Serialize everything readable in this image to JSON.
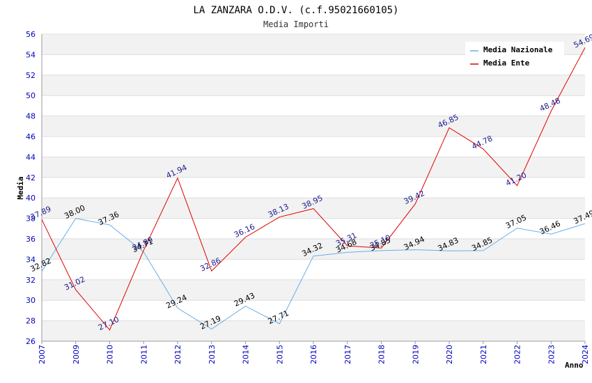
{
  "chart_data": {
    "type": "line",
    "title": "LA ZANZARA O.D.V. (c.f.95021660105)",
    "subtitle": "Media Importi",
    "xlabel": "Anno",
    "ylabel": "Media",
    "ylim": [
      26,
      56
    ],
    "yticks": [
      26,
      28,
      30,
      32,
      34,
      36,
      38,
      40,
      42,
      44,
      46,
      48,
      50,
      52,
      54,
      56
    ],
    "categories": [
      "2007",
      "2009",
      "2010",
      "2011",
      "2012",
      "2013",
      "2014",
      "2015",
      "2016",
      "2017",
      "2018",
      "2019",
      "2020",
      "2021",
      "2022",
      "2023",
      "2024"
    ],
    "series": [
      {
        "name": "Media Nazionale",
        "color": "#6aaee8",
        "values": [
          32.82,
          38.0,
          37.36,
          34.71,
          29.24,
          27.19,
          29.43,
          27.71,
          34.32,
          34.68,
          34.85,
          34.94,
          34.83,
          34.85,
          37.05,
          36.46,
          37.49
        ],
        "labels": [
          "32.82",
          "38.00",
          "37.36",
          "34.71",
          "29.24",
          "27.19",
          "29.43",
          "27.71",
          "34.32",
          "34.68",
          "34.85",
          "34.94",
          "34.83",
          "34.85",
          "37.05",
          "36.46",
          "37.49"
        ]
      },
      {
        "name": "Media Ente",
        "color": "#e00000",
        "values": [
          37.89,
          31.02,
          27.1,
          34.89,
          41.94,
          32.86,
          36.16,
          38.13,
          38.95,
          35.31,
          35.1,
          39.42,
          46.85,
          44.78,
          41.2,
          48.48,
          54.69
        ],
        "labels": [
          "37.89",
          "31.02",
          "27.10",
          "34.89",
          "41.94",
          "32.86",
          "36.16",
          "38.13",
          "38.95",
          "35.31",
          "35.10",
          "39.42",
          "46.85",
          "44.78",
          "41.20",
          "48.48",
          "54.69"
        ]
      }
    ],
    "grid": true,
    "legend_position": "top-right"
  }
}
